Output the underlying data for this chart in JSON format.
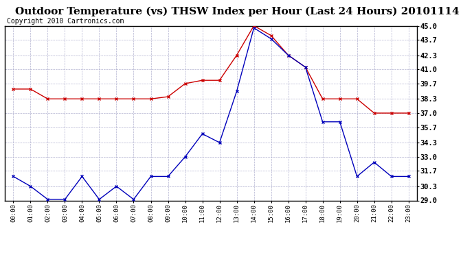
{
  "title": "Outdoor Temperature (vs) THSW Index per Hour (Last 24 Hours) 20101114",
  "copyright": "Copyright 2010 Cartronics.com",
  "x_labels": [
    "00:00",
    "01:00",
    "02:00",
    "03:00",
    "04:00",
    "05:00",
    "06:00",
    "07:00",
    "08:00",
    "09:00",
    "10:00",
    "11:00",
    "12:00",
    "13:00",
    "14:00",
    "15:00",
    "16:00",
    "17:00",
    "18:00",
    "19:00",
    "20:00",
    "21:00",
    "22:00",
    "23:00"
  ],
  "temp_data": [
    31.2,
    30.3,
    29.1,
    29.1,
    31.2,
    29.1,
    30.3,
    29.1,
    31.2,
    31.2,
    33.0,
    35.1,
    34.3,
    39.0,
    44.8,
    43.8,
    42.3,
    41.2,
    36.2,
    36.2,
    31.2,
    32.5,
    31.2,
    31.2
  ],
  "thsw_data": [
    39.2,
    39.2,
    38.3,
    38.3,
    38.3,
    38.3,
    38.3,
    38.3,
    38.3,
    38.5,
    39.7,
    40.0,
    40.0,
    42.3,
    45.0,
    44.1,
    42.3,
    41.2,
    38.3,
    38.3,
    38.3,
    37.0,
    37.0,
    37.0
  ],
  "ylim_min": 29.0,
  "ylim_max": 45.0,
  "yticks": [
    29.0,
    30.3,
    31.7,
    33.0,
    34.3,
    35.7,
    37.0,
    38.3,
    39.7,
    41.0,
    42.3,
    43.7,
    45.0
  ],
  "temp_color": "#0000bb",
  "thsw_color": "#cc0000",
  "bg_color": "#ffffff",
  "grid_color": "#aaaacc",
  "title_fontsize": 11,
  "copyright_fontsize": 7
}
